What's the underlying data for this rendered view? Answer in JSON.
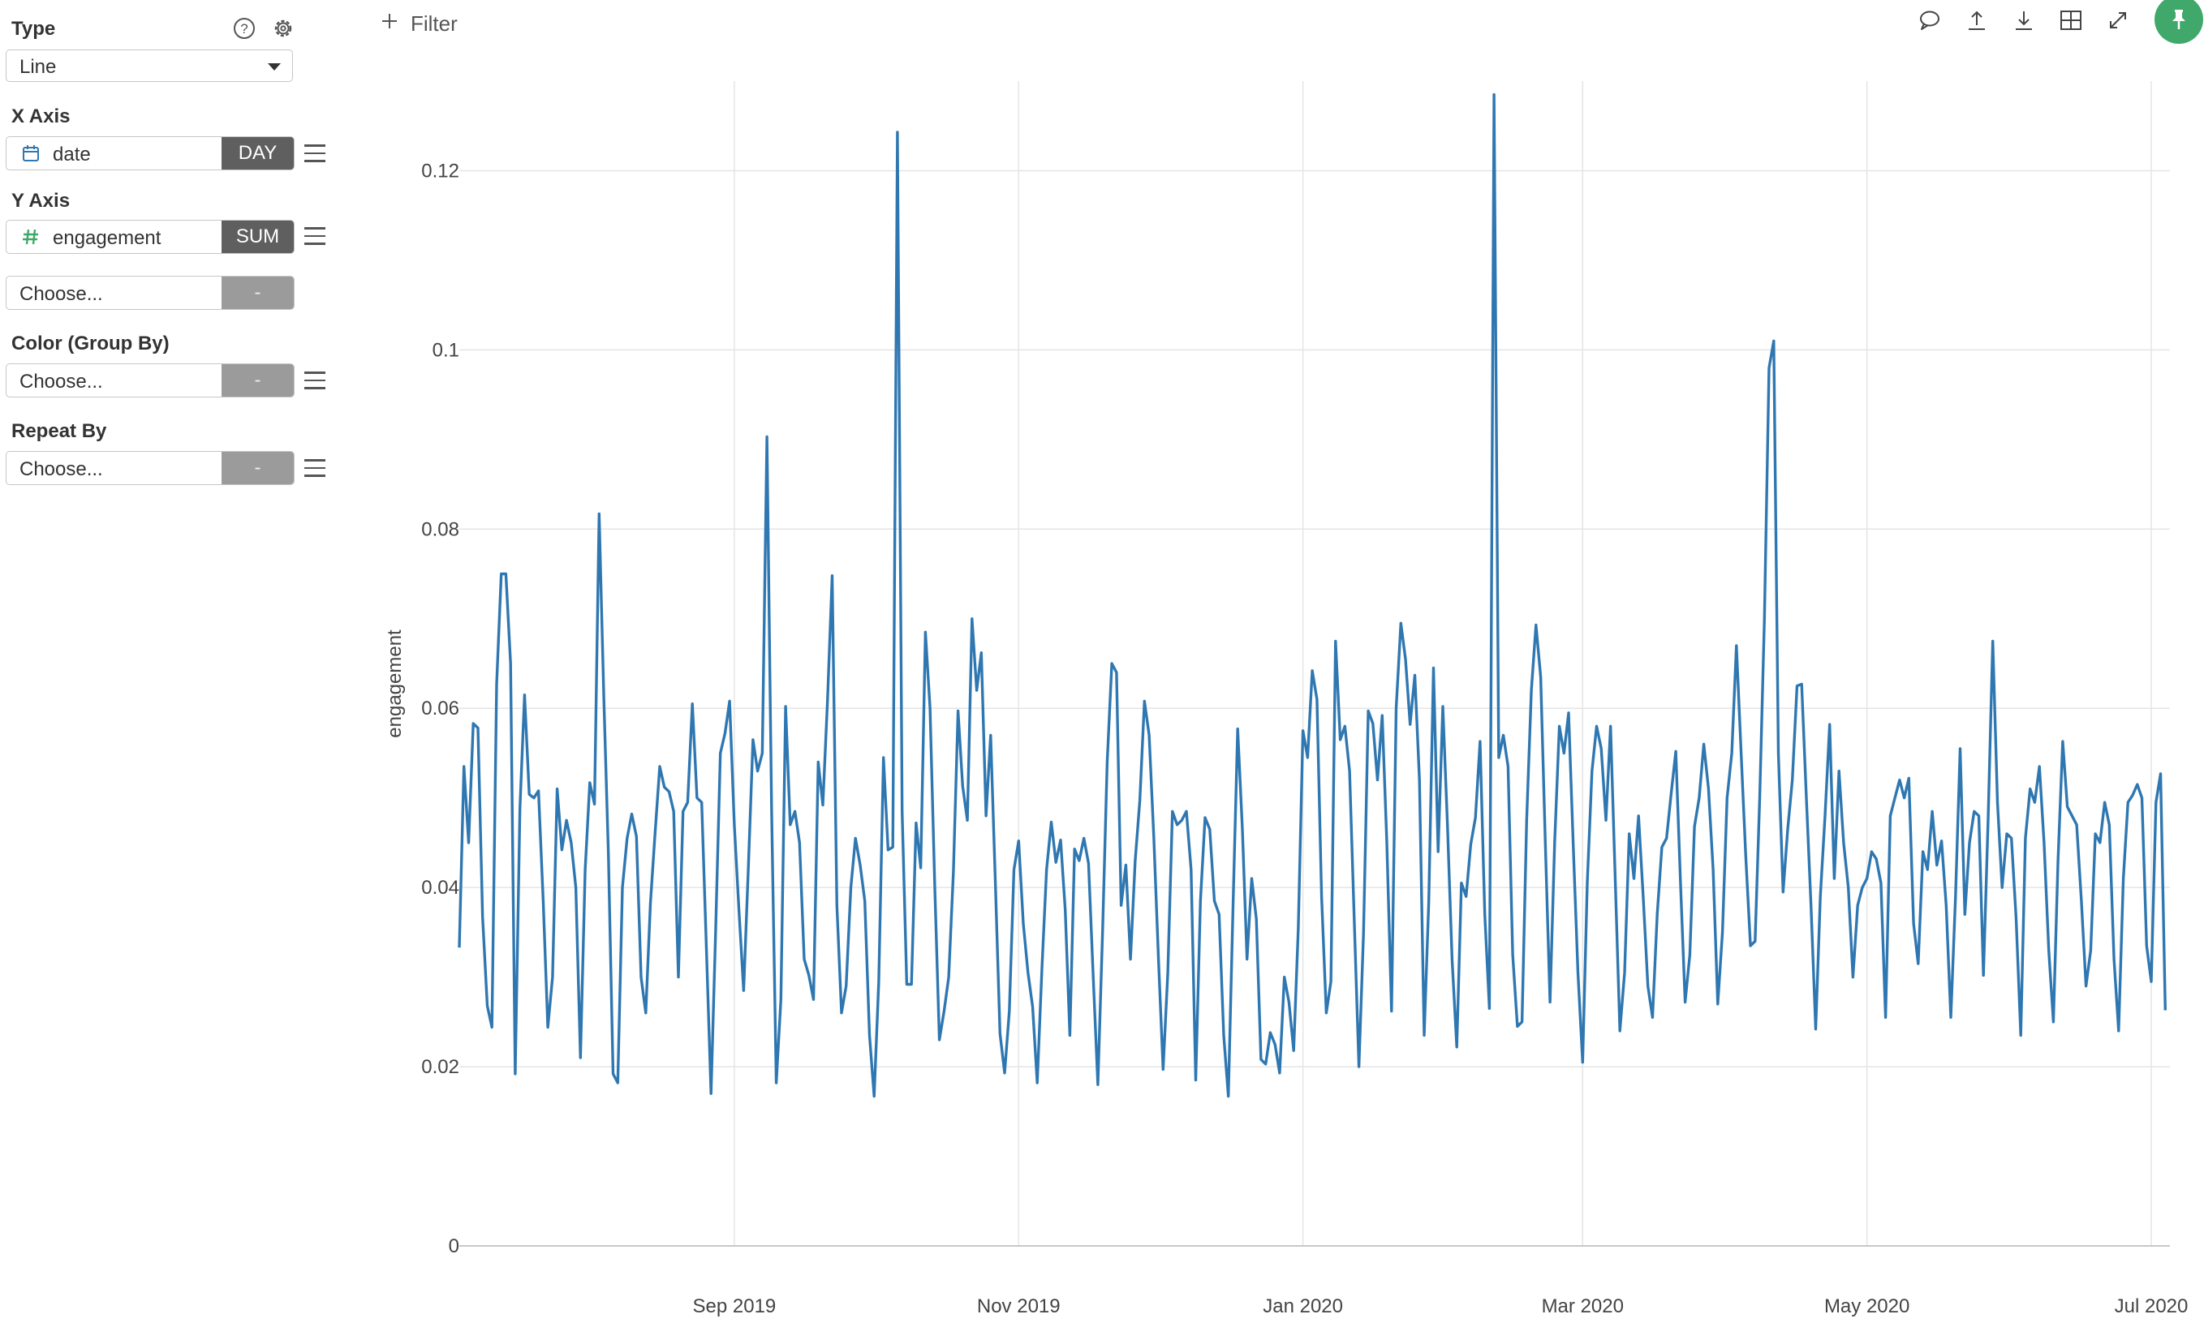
{
  "sidebar": {
    "type_label": "Type",
    "type_value": "Line",
    "x_axis_label": "X Axis",
    "x_field": "date",
    "x_agg": "DAY",
    "y_axis_label": "Y Axis",
    "y_field": "engagement",
    "y_agg": "SUM",
    "extra_y_placeholder": "Choose...",
    "extra_y_agg": "-",
    "color_label": "Color (Group By)",
    "color_placeholder": "Choose...",
    "color_agg": "-",
    "repeat_label": "Repeat By",
    "repeat_placeholder": "Choose...",
    "repeat_agg": "-"
  },
  "toolbar": {
    "filter_label": "Filter",
    "icons": [
      "comment-icon",
      "upload-icon",
      "download-icon",
      "table-icon",
      "expand-icon",
      "pin-icon"
    ]
  },
  "colors": {
    "line": "#2f77b1",
    "grid": "#e5e5e5",
    "pin": "#3fa86a",
    "agg_active": "#5f5f5f",
    "agg_disabled": "#9b9b9b"
  },
  "chart_data": {
    "type": "line",
    "title": "",
    "xlabel": "",
    "ylabel": "engagement",
    "x_start": "2019-07-04",
    "x_end": "2020-07-05",
    "x_ticks": [
      "Sep 2019",
      "Nov 2019",
      "Jan 2020",
      "Mar 2020",
      "May 2020",
      "Jul 2020"
    ],
    "x_tick_dates": [
      "2019-09-01",
      "2019-11-01",
      "2020-01-01",
      "2020-03-01",
      "2020-05-01",
      "2020-07-01"
    ],
    "y_ticks": [
      "0",
      "0.02",
      "0.04",
      "0.06",
      "0.08",
      "0.1",
      "0.12"
    ],
    "ylim": [
      0,
      0.13
    ],
    "grid": true,
    "legend": "none",
    "series": [
      {
        "values": [
          0.0333,
          0.0535,
          0.045,
          0.0583,
          0.0578,
          0.0367,
          0.0268,
          0.0244,
          0.0627,
          0.075,
          0.075,
          0.065,
          0.0192,
          0.0488,
          0.0615,
          0.0504,
          0.05,
          0.0508,
          0.0385,
          0.0244,
          0.03,
          0.051,
          0.0442,
          0.0475,
          0.045,
          0.04,
          0.021,
          0.042,
          0.0517,
          0.0493,
          0.0817,
          0.0612,
          0.0435,
          0.0192,
          0.0182,
          0.04,
          0.0455,
          0.0482,
          0.0457,
          0.03,
          0.026,
          0.0382,
          0.046,
          0.0535,
          0.0512,
          0.0507,
          0.0485,
          0.03,
          0.0485,
          0.0495,
          0.0605,
          0.05,
          0.0495,
          0.0335,
          0.017,
          0.0352,
          0.055,
          0.0572,
          0.0608,
          0.047,
          0.0375,
          0.0285,
          0.042,
          0.0565,
          0.053,
          0.055,
          0.0903,
          0.049,
          0.0182,
          0.0275,
          0.0602,
          0.047,
          0.0485,
          0.045,
          0.032,
          0.0302,
          0.0275,
          0.054,
          0.0492,
          0.061,
          0.0748,
          0.038,
          0.026,
          0.029,
          0.04,
          0.0455,
          0.0425,
          0.0385,
          0.0235,
          0.0167,
          0.0295,
          0.0545,
          0.0442,
          0.0445,
          0.1243,
          0.0485,
          0.0292,
          0.0292,
          0.0472,
          0.0422,
          0.0685,
          0.06,
          0.0402,
          0.023,
          0.0262,
          0.03,
          0.0418,
          0.0597,
          0.0513,
          0.0475,
          0.07,
          0.062,
          0.0662,
          0.048,
          0.057,
          0.0408,
          0.0237,
          0.0193,
          0.0262,
          0.042,
          0.0452,
          0.036,
          0.0305,
          0.0267,
          0.0182,
          0.031,
          0.042,
          0.0473,
          0.0428,
          0.0453,
          0.0375,
          0.0235,
          0.0443,
          0.043,
          0.0455,
          0.0427,
          0.03,
          0.018,
          0.035,
          0.054,
          0.065,
          0.064,
          0.038,
          0.0425,
          0.032,
          0.043,
          0.0497,
          0.0608,
          0.057,
          0.0457,
          0.032,
          0.0197,
          0.0305,
          0.0485,
          0.047,
          0.0475,
          0.0485,
          0.042,
          0.0185,
          0.0385,
          0.0478,
          0.0465,
          0.0385,
          0.037,
          0.0235,
          0.0167,
          0.038,
          0.0577,
          0.0465,
          0.032,
          0.041,
          0.0365,
          0.0208,
          0.0203,
          0.0238,
          0.0225,
          0.0193,
          0.03,
          0.0272,
          0.0218,
          0.0355,
          0.0575,
          0.0545,
          0.0642,
          0.061,
          0.039,
          0.026,
          0.0295,
          0.0675,
          0.0565,
          0.058,
          0.053,
          0.0365,
          0.02,
          0.035,
          0.0597,
          0.0583,
          0.052,
          0.0592,
          0.045,
          0.0262,
          0.06,
          0.0695,
          0.0655,
          0.0582,
          0.0637,
          0.052,
          0.0235,
          0.0385,
          0.0645,
          0.044,
          0.0602,
          0.047,
          0.032,
          0.0222,
          0.0405,
          0.039,
          0.0448,
          0.0478,
          0.0563,
          0.037,
          0.0265,
          0.1285,
          0.0545,
          0.057,
          0.0535,
          0.0325,
          0.0245,
          0.025,
          0.0475,
          0.062,
          0.0693,
          0.0635,
          0.045,
          0.0272,
          0.045,
          0.058,
          0.055,
          0.0595,
          0.0445,
          0.0305,
          0.0205,
          0.0405,
          0.053,
          0.058,
          0.0555,
          0.0475,
          0.058,
          0.0408,
          0.024,
          0.0305,
          0.046,
          0.041,
          0.048,
          0.039,
          0.029,
          0.0255,
          0.037,
          0.0445,
          0.0455,
          0.0505,
          0.0552,
          0.0405,
          0.0272,
          0.0325,
          0.0468,
          0.05,
          0.056,
          0.051,
          0.042,
          0.027,
          0.035,
          0.05,
          0.055,
          0.067,
          0.055,
          0.0435,
          0.0335,
          0.034,
          0.05,
          0.07,
          0.098,
          0.101,
          0.055,
          0.0395,
          0.0465,
          0.052,
          0.0625,
          0.0627,
          0.05,
          0.038,
          0.0242,
          0.039,
          0.048,
          0.0582,
          0.041,
          0.053,
          0.045,
          0.04,
          0.03,
          0.038,
          0.04,
          0.041,
          0.044,
          0.0432,
          0.0405,
          0.0255,
          0.048,
          0.05,
          0.052,
          0.05,
          0.0522,
          0.036,
          0.0315,
          0.044,
          0.042,
          0.0485,
          0.0425,
          0.0452,
          0.038,
          0.0255,
          0.039,
          0.0555,
          0.037,
          0.045,
          0.0485,
          0.048,
          0.0302,
          0.0477,
          0.0675,
          0.0495,
          0.04,
          0.046,
          0.0455,
          0.0365,
          0.0235,
          0.0455,
          0.051,
          0.0495,
          0.0535,
          0.045,
          0.033,
          0.025,
          0.043,
          0.0563,
          0.049,
          0.048,
          0.047,
          0.0385,
          0.029,
          0.033,
          0.046,
          0.045,
          0.0495,
          0.047,
          0.032,
          0.024,
          0.041,
          0.0495,
          0.0503,
          0.0515,
          0.05,
          0.0335,
          0.0295,
          0.0495,
          0.0527,
          0.0263
        ]
      }
    ]
  }
}
